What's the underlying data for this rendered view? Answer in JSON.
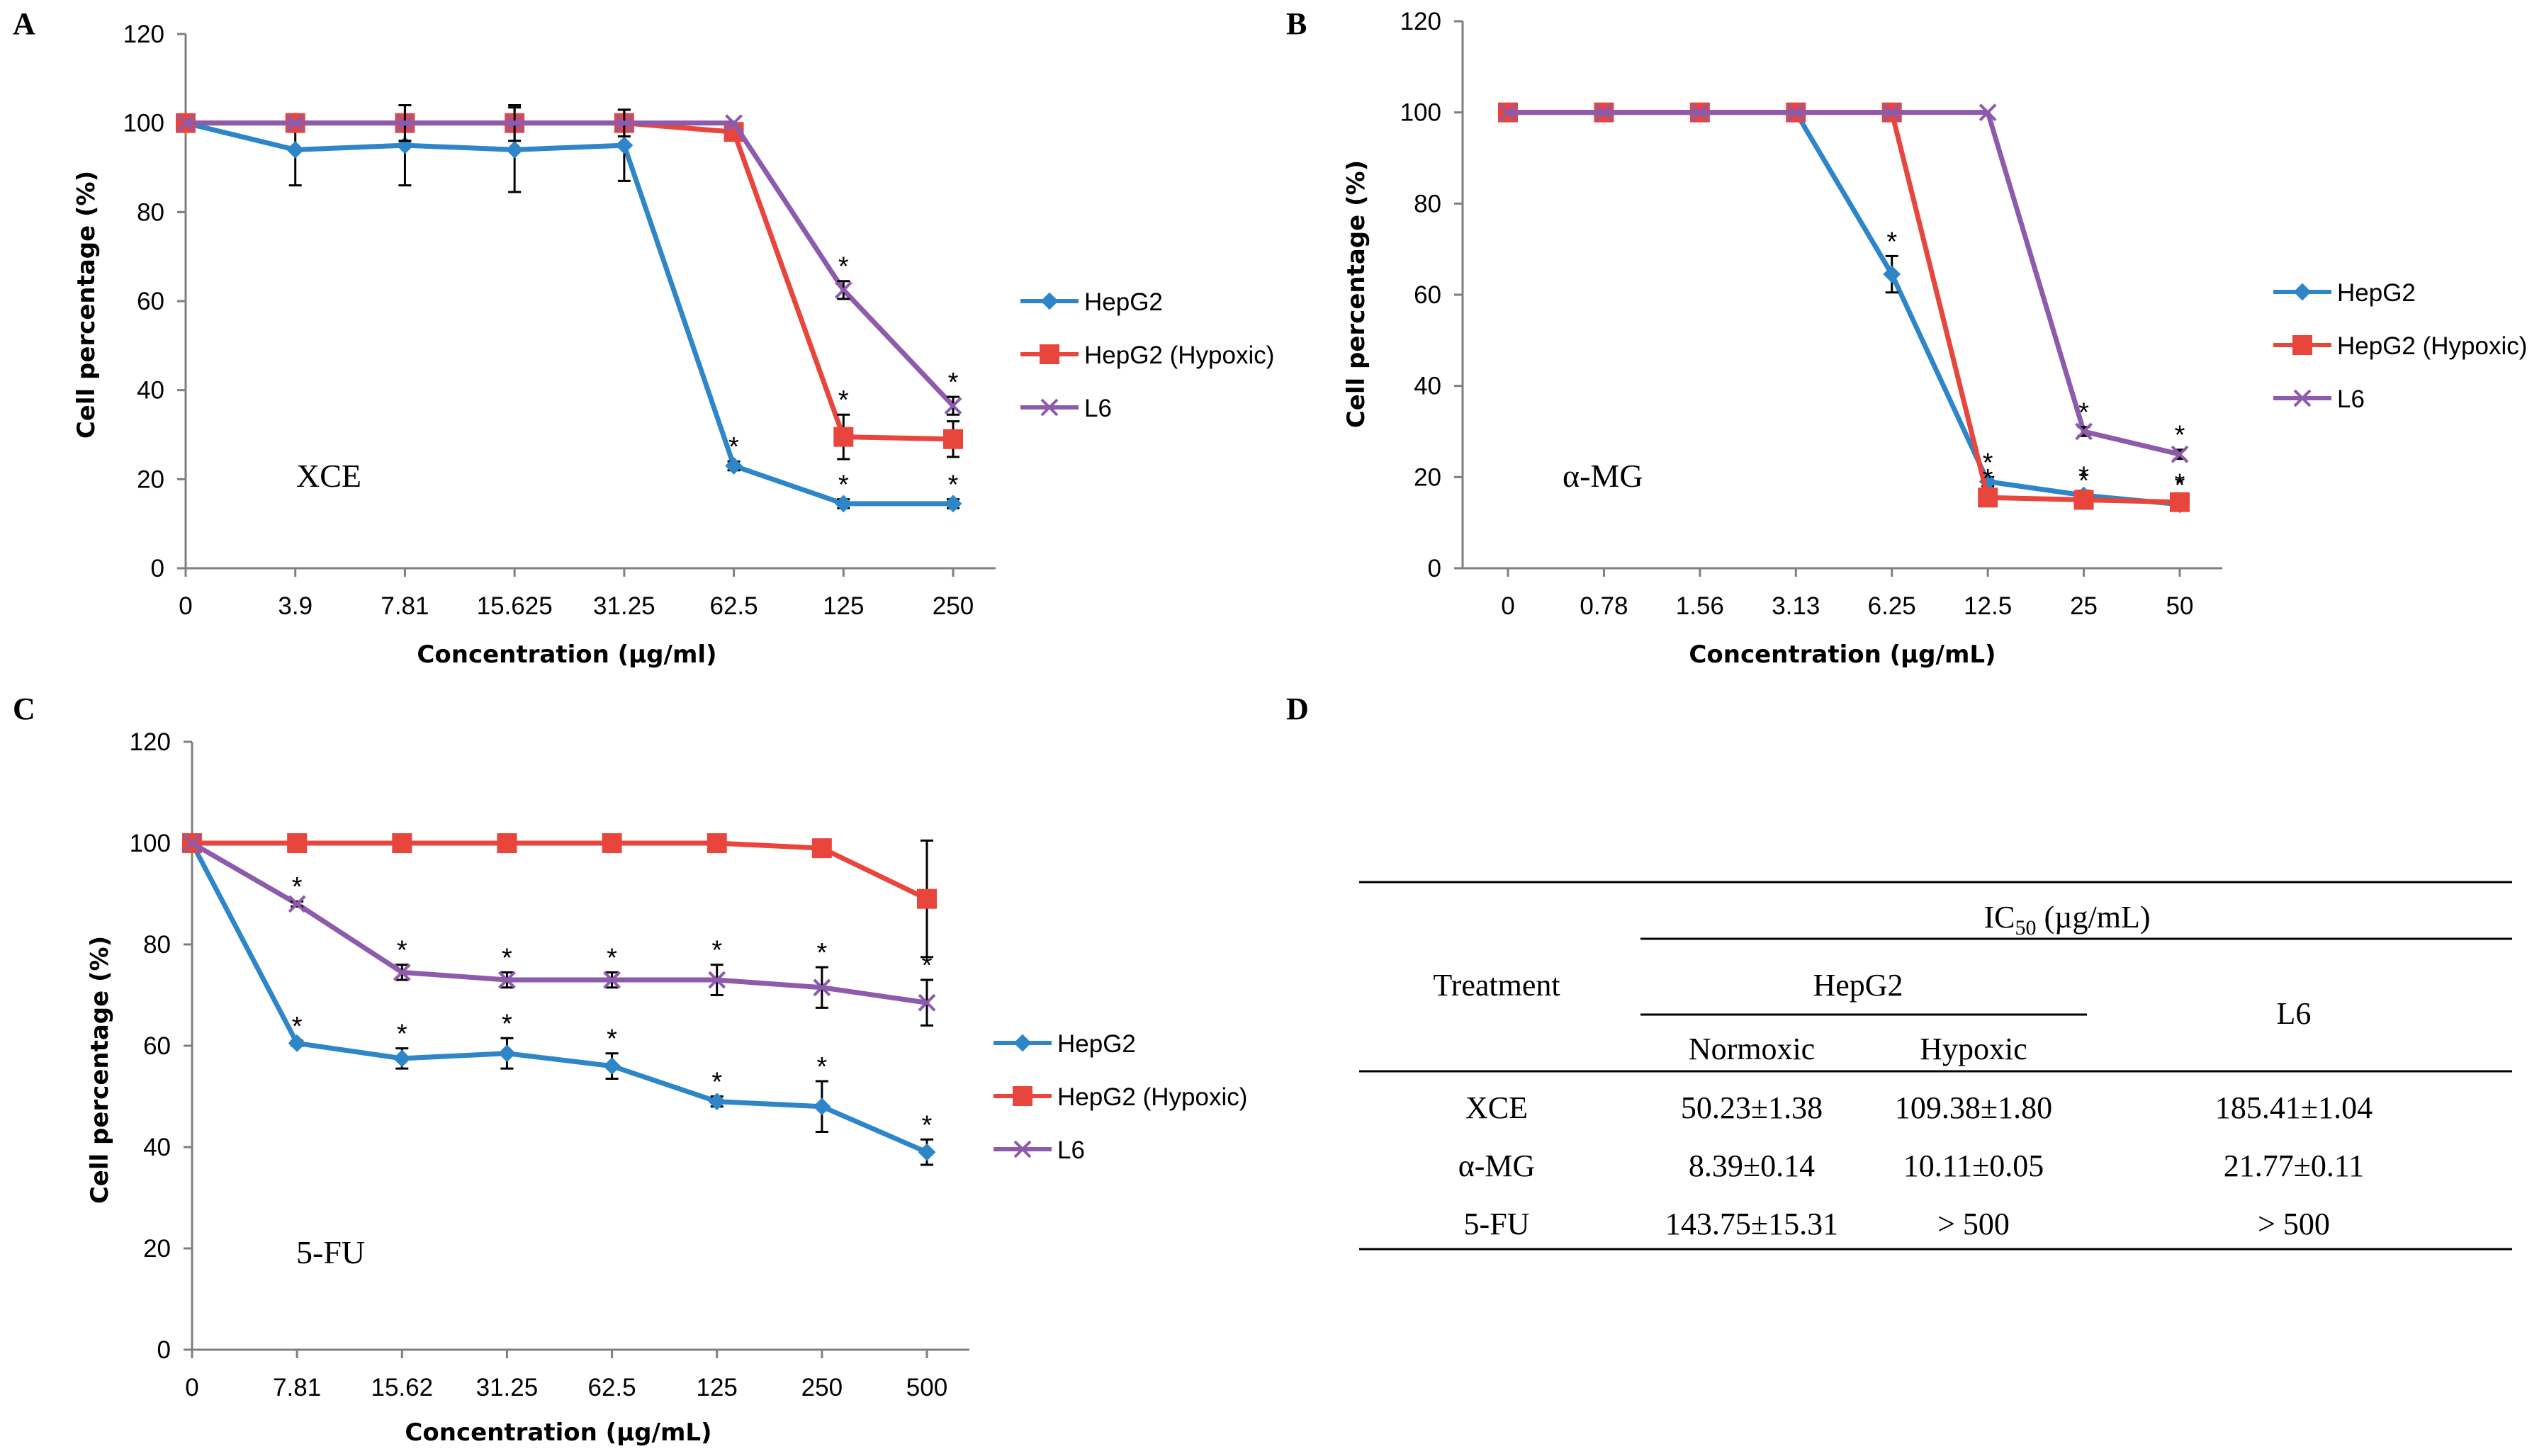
{
  "colors": {
    "HepG2": "#2E86C8",
    "HepG2 (Hypoxic)": "#E8463C",
    "L6": "#8E5AAB",
    "axis": "#7f7f7f"
  },
  "chart_data": [
    {
      "panel": "A",
      "type": "line",
      "compound_label": "XCE",
      "xlabel": "Concentration (µg/ml)",
      "ylabel": "Cell percentage (%)",
      "categories": [
        "0",
        "3.9",
        "7.81",
        "15.625",
        "31.25",
        "62.5",
        "125",
        "250"
      ],
      "ylim": [
        0,
        120
      ],
      "yticks": [
        0,
        20,
        40,
        60,
        80,
        100,
        120
      ],
      "legend": [
        "HepG2",
        "HepG2 (Hypoxic)",
        "L6"
      ],
      "legend_position": "right",
      "series": [
        {
          "name": "HepG2",
          "marker": "diamond",
          "values": [
            100,
            94,
            95,
            94,
            95,
            23,
            14.5,
            14.5
          ],
          "errors": [
            0,
            8,
            9,
            9.5,
            8,
            1,
            1,
            1
          ],
          "stars": [
            5,
            6,
            7
          ]
        },
        {
          "name": "HepG2 (Hypoxic)",
          "marker": "square",
          "values": [
            100,
            100,
            100,
            100,
            100,
            98,
            29.5,
            29
          ],
          "errors": [
            0,
            0,
            0,
            0,
            0,
            0,
            5,
            4
          ],
          "stars": [
            6
          ]
        },
        {
          "name": "L6",
          "marker": "cross",
          "values": [
            100,
            100,
            100,
            100,
            100,
            100,
            62.5,
            36.5
          ],
          "errors": [
            0,
            0,
            4,
            4,
            3,
            0,
            2,
            2
          ],
          "stars": [
            6,
            7
          ]
        }
      ]
    },
    {
      "panel": "B",
      "type": "line",
      "compound_label": "α-MG",
      "xlabel": "Concentration (µg/mL)",
      "ylabel": "Cell percentage (%)",
      "categories": [
        "0",
        "0.78",
        "1.56",
        "3.13",
        "6.25",
        "12.5",
        "25",
        "50"
      ],
      "ylim": [
        0,
        120
      ],
      "yticks": [
        0,
        20,
        40,
        60,
        80,
        100,
        120
      ],
      "legend": [
        "HepG2",
        "HepG2 (Hypoxic)",
        "L6"
      ],
      "legend_position": "right",
      "series": [
        {
          "name": "HepG2",
          "marker": "diamond",
          "values": [
            100,
            100,
            100,
            100,
            64.5,
            19,
            16,
            14
          ],
          "errors": [
            0,
            0,
            0,
            0,
            4,
            1,
            1,
            1
          ],
          "stars": [
            4,
            5,
            6,
            7
          ]
        },
        {
          "name": "HepG2 (Hypoxic)",
          "marker": "square",
          "values": [
            100,
            100,
            100,
            100,
            100,
            15.5,
            15,
            14.5
          ],
          "errors": [
            0,
            0,
            0,
            0,
            0,
            1,
            1,
            1
          ],
          "stars": [
            5,
            6,
            7
          ]
        },
        {
          "name": "L6",
          "marker": "cross",
          "values": [
            100,
            100,
            100,
            100,
            100,
            100,
            30,
            25
          ],
          "errors": [
            0,
            0,
            0,
            0,
            0,
            0,
            1,
            1
          ],
          "stars": [
            6,
            7
          ]
        }
      ]
    },
    {
      "panel": "C",
      "type": "line",
      "compound_label": "5-FU",
      "xlabel": "Concentration (µg/mL)",
      "ylabel": "Cell percentage (%)",
      "categories": [
        "0",
        "7.81",
        "15.62",
        "31.25",
        "62.5",
        "125",
        "250",
        "500"
      ],
      "ylim": [
        0,
        120
      ],
      "yticks": [
        0,
        20,
        40,
        60,
        80,
        100,
        120
      ],
      "legend": [
        "HepG2",
        "HepG2 (Hypoxic)",
        "L6"
      ],
      "legend_position": "right",
      "series": [
        {
          "name": "HepG2",
          "marker": "diamond",
          "values": [
            100,
            60.5,
            57.5,
            58.5,
            56,
            49,
            48,
            39
          ],
          "errors": [
            0,
            0.5,
            2,
            3,
            2.5,
            1,
            5,
            2.5
          ],
          "stars": [
            1,
            2,
            3,
            4,
            5,
            6,
            7
          ]
        },
        {
          "name": "HepG2 (Hypoxic)",
          "marker": "square",
          "values": [
            100,
            100,
            100,
            100,
            100,
            100,
            99,
            89
          ],
          "errors": [
            0,
            0,
            0,
            0,
            0,
            0,
            0,
            11.5
          ],
          "stars": []
        },
        {
          "name": "L6",
          "marker": "cross",
          "values": [
            100,
            88,
            74.5,
            73,
            73,
            73,
            71.5,
            68.5
          ],
          "errors": [
            0,
            0.5,
            1.5,
            1.5,
            1.5,
            3,
            4,
            4.5
          ],
          "stars": [
            1,
            2,
            3,
            4,
            5,
            6,
            7
          ]
        }
      ]
    },
    {
      "panel": "D",
      "type": "table",
      "header": {
        "treatment": "Treatment",
        "ic50_prefix": "IC",
        "ic50_sub": "50",
        "ic50_unit": " (µg/mL)",
        "hepg2": "HepG2",
        "normoxic": "Normoxic",
        "hypoxic": "Hypoxic",
        "l6": "L6"
      },
      "rows": [
        {
          "treatment": "XCE",
          "normoxic": "50.23±1.38",
          "hypoxic": "109.38±1.80",
          "l6": "185.41±1.04"
        },
        {
          "treatment": "α-MG",
          "normoxic": "8.39±0.14",
          "hypoxic": "10.11±0.05",
          "l6": "21.77±0.11"
        },
        {
          "treatment": "5-FU",
          "normoxic": "143.75±15.31",
          "hypoxic": "> 500",
          "l6": "> 500"
        }
      ]
    }
  ]
}
